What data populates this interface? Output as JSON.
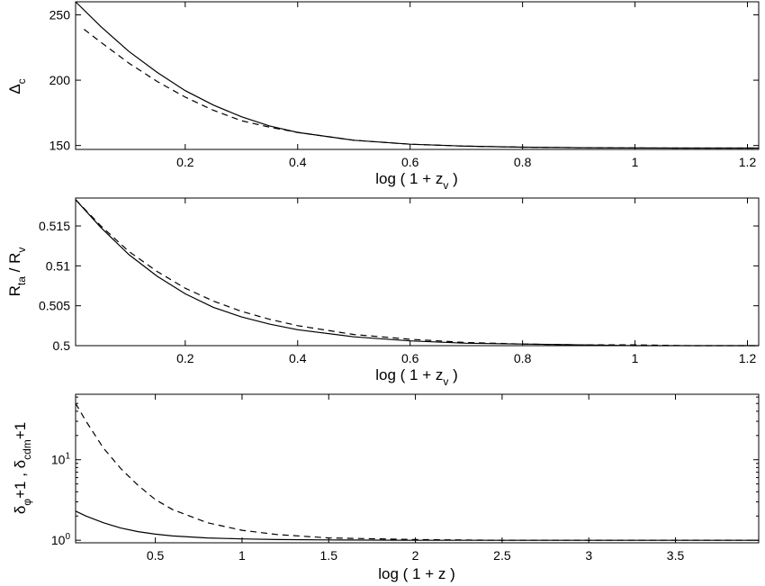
{
  "chart_data": [
    {
      "type": "line",
      "title": "",
      "xlabel": {
        "main": "log ( 1 + z",
        "sub": "v",
        "close": " )"
      },
      "ylabel": {
        "main": "Δ",
        "sub": "c"
      },
      "xlim": [
        0.005,
        1.22
      ],
      "ylim": [
        147,
        260
      ],
      "yscale": "linear",
      "xticks": [
        0.2,
        0.4,
        0.6,
        0.8,
        1,
        1.2
      ],
      "xticklabels": [
        "0.2",
        "0.4",
        "0.6",
        "0.8",
        "1",
        "1.2"
      ],
      "yticks": [
        150,
        200,
        250
      ],
      "yticklabels": [
        "150",
        "200",
        "250"
      ],
      "series": [
        {
          "style": "solid",
          "x": [
            0.005,
            0.05,
            0.1,
            0.15,
            0.2,
            0.25,
            0.3,
            0.35,
            0.4,
            0.5,
            0.6,
            0.7,
            0.8,
            0.9,
            1.0,
            1.1,
            1.22
          ],
          "y": [
            260,
            241,
            222,
            206,
            192,
            181,
            172,
            165,
            160,
            154,
            151,
            149.5,
            148.7,
            148.3,
            148.1,
            148,
            148
          ]
        },
        {
          "style": "dashed",
          "x": [
            0.02,
            0.05,
            0.1,
            0.15,
            0.2,
            0.25,
            0.3,
            0.35,
            0.4,
            0.5,
            0.6,
            0.7,
            0.8,
            0.9,
            1.0,
            1.1,
            1.22
          ],
          "y": [
            239,
            229,
            213,
            199,
            187,
            177,
            169,
            164,
            160,
            154,
            151,
            149.5,
            148.7,
            148.3,
            148.1,
            148,
            148
          ]
        }
      ]
    },
    {
      "type": "line",
      "title": "",
      "xlabel": {
        "main": "log ( 1 + z",
        "sub": "v",
        "close": " )"
      },
      "ylabel": {
        "main": "R",
        "sub": "ta",
        "mid": " / R",
        "sub2": "v"
      },
      "xlim": [
        0.005,
        1.22
      ],
      "ylim": [
        0.5,
        0.5185
      ],
      "yscale": "linear",
      "xticks": [
        0.2,
        0.4,
        0.6,
        0.8,
        1,
        1.2
      ],
      "xticklabels": [
        "0.2",
        "0.4",
        "0.6",
        "0.8",
        "1",
        "1.2"
      ],
      "yticks": [
        0.5,
        0.505,
        0.51,
        0.515
      ],
      "yticklabels": [
        "0.5",
        "0.505",
        "0.51",
        "0.515"
      ],
      "series": [
        {
          "style": "solid",
          "x": [
            0.005,
            0.05,
            0.1,
            0.15,
            0.2,
            0.25,
            0.3,
            0.35,
            0.4,
            0.5,
            0.6,
            0.7,
            0.8,
            0.9,
            1.0,
            1.1,
            1.22
          ],
          "y": [
            0.5183,
            0.5148,
            0.5114,
            0.5087,
            0.5065,
            0.5048,
            0.5036,
            0.5027,
            0.502,
            0.5011,
            0.5006,
            0.5003,
            0.5002,
            0.5001,
            0.5,
            0.5,
            0.5
          ]
        },
        {
          "style": "dashed",
          "x": [
            0.005,
            0.05,
            0.1,
            0.15,
            0.2,
            0.25,
            0.3,
            0.35,
            0.4,
            0.5,
            0.6,
            0.7,
            0.8,
            0.9,
            1.0,
            1.1,
            1.22
          ],
          "y": [
            0.5183,
            0.515,
            0.5118,
            0.5093,
            0.5072,
            0.5056,
            0.5043,
            0.5033,
            0.5025,
            0.5014,
            0.5008,
            0.5004,
            0.5002,
            0.5001,
            0.5001,
            0.5,
            0.5
          ]
        }
      ]
    },
    {
      "type": "line",
      "title": "",
      "xlabel": {
        "main": "log ( 1 + z )"
      },
      "ylabel": {
        "main": "δ",
        "sub": "φ",
        "mid": "+1 , δ",
        "sub2": "cdm",
        "tail": "+1"
      },
      "xlim": [
        0.04,
        3.98
      ],
      "ylim": [
        0.93,
        65
      ],
      "yscale": "log",
      "xticks": [
        0.5,
        1,
        1.5,
        2,
        2.5,
        3,
        3.5
      ],
      "xticklabels": [
        "0.5",
        "1",
        "1.5",
        "2",
        "2.5",
        "3",
        "3.5"
      ],
      "yticks": [
        1,
        10
      ],
      "yticklabels": [
        {
          "base": "10",
          "exp": "0"
        },
        {
          "base": "10",
          "exp": "1"
        }
      ],
      "series": [
        {
          "style": "solid",
          "x": [
            0.04,
            0.1,
            0.2,
            0.3,
            0.4,
            0.5,
            0.6,
            0.8,
            1.0,
            1.2,
            1.5,
            2.0,
            2.5,
            3.0,
            3.5,
            3.98
          ],
          "y": [
            2.3,
            2.0,
            1.65,
            1.42,
            1.28,
            1.19,
            1.13,
            1.07,
            1.04,
            1.02,
            1.01,
            1.0,
            1.0,
            1.0,
            1.0,
            1.0
          ]
        },
        {
          "style": "dashed",
          "x": [
            0.04,
            0.1,
            0.2,
            0.3,
            0.4,
            0.5,
            0.6,
            0.8,
            1.0,
            1.2,
            1.5,
            2.0,
            2.5,
            3.0,
            3.5,
            3.98
          ],
          "y": [
            50,
            30,
            14,
            7.8,
            4.8,
            3.2,
            2.4,
            1.65,
            1.33,
            1.18,
            1.07,
            1.02,
            1.0,
            1.0,
            1.0,
            1.0
          ]
        }
      ]
    }
  ]
}
